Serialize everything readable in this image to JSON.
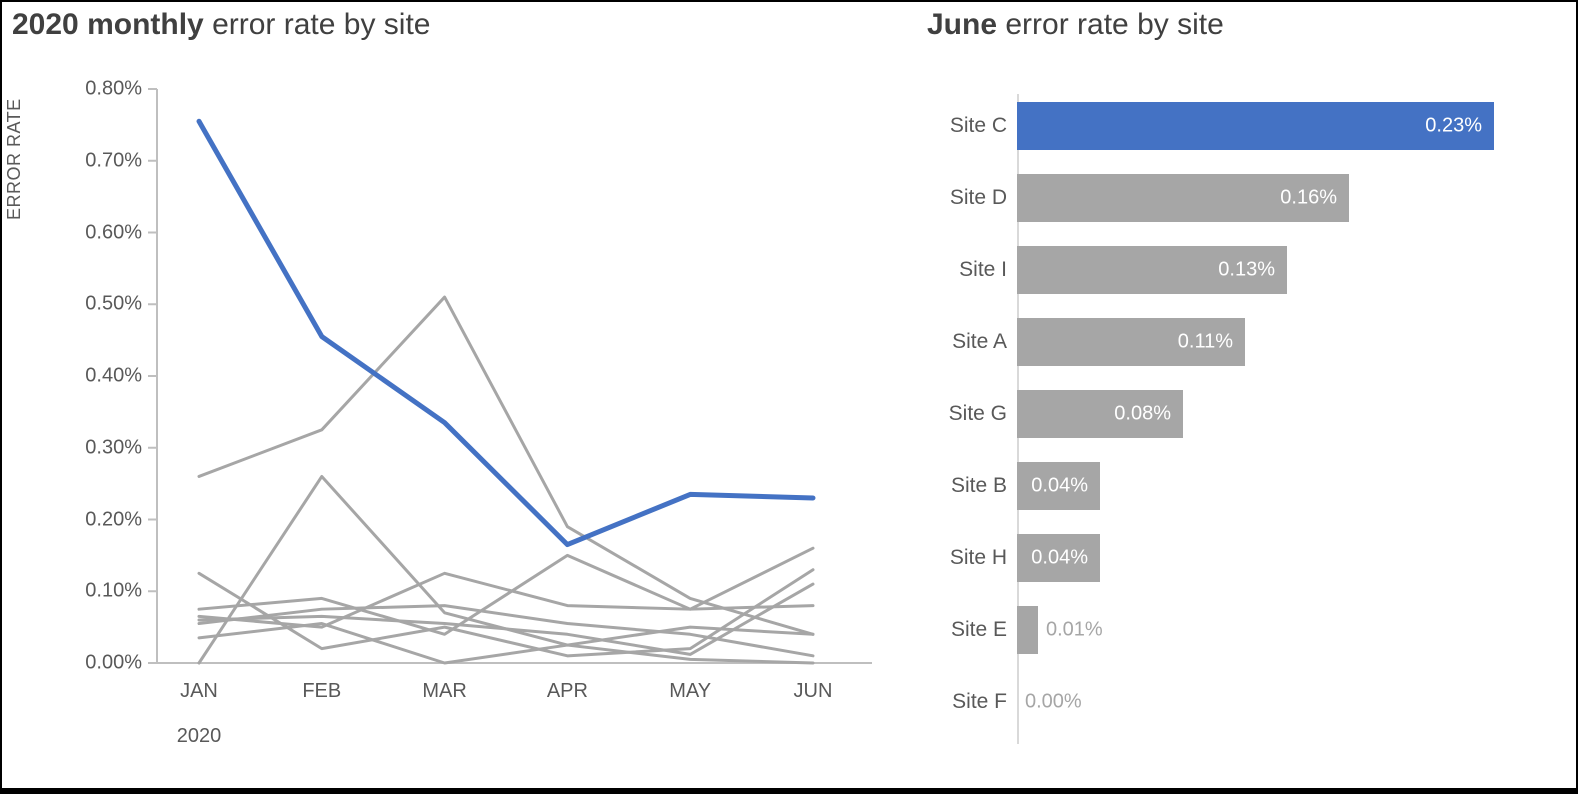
{
  "page": {
    "background": "#ffffff",
    "frame_color": "#000000"
  },
  "colors": {
    "accent_blue": "#4472c4",
    "series_gray": "#a6a6a6",
    "title_text": "#404040",
    "axis_text": "#595959",
    "axis_line": "#bfbfbf",
    "muted_value_text": "#a6a6a6"
  },
  "line_chart": {
    "title_bold": "2020 monthly",
    "title_rest": " error rate by site",
    "y_axis_label": "ERROR RATE",
    "x_axis_year": "2020"
  },
  "bar_chart": {
    "title_bold": "June",
    "title_rest": " error rate by site"
  },
  "chart_data": [
    {
      "type": "line",
      "title": "2020 monthly error rate by site",
      "xlabel": "2020",
      "ylabel": "ERROR RATE",
      "x": [
        "JAN",
        "FEB",
        "MAR",
        "APR",
        "MAY",
        "JUN"
      ],
      "ylim": [
        0,
        0.8
      ],
      "y_ticks": [
        "0.80%",
        "0.70%",
        "0.60%",
        "0.50%",
        "0.40%",
        "0.30%",
        "0.20%",
        "0.10%",
        "0.00%"
      ],
      "grid": false,
      "legend": "none",
      "unit": "percent",
      "series": [
        {
          "name": "Site D",
          "color": "#a6a6a6",
          "width": 3,
          "values": [
            0.075,
            0.09,
            0.04,
            0.15,
            0.075,
            0.16
          ]
        },
        {
          "name": "Site I",
          "color": "#a6a6a6",
          "width": 3,
          "values": [
            0.125,
            0.02,
            0.05,
            0.01,
            0.02,
            0.13
          ]
        },
        {
          "name": "Site A",
          "color": "#a6a6a6",
          "width": 3,
          "values": [
            0.06,
            0.065,
            0.055,
            0.04,
            0.012,
            0.11
          ]
        },
        {
          "name": "Site G",
          "color": "#a6a6a6",
          "width": 3,
          "values": [
            0.065,
            0.05,
            0.125,
            0.08,
            0.075,
            0.08
          ]
        },
        {
          "name": "Site B",
          "color": "#a6a6a6",
          "width": 3,
          "values": [
            0.0,
            0.26,
            0.07,
            0.025,
            0.05,
            0.04
          ]
        },
        {
          "name": "Site H",
          "color": "#a6a6a6",
          "width": 3,
          "values": [
            0.26,
            0.325,
            0.51,
            0.19,
            0.09,
            0.04
          ]
        },
        {
          "name": "Site E",
          "color": "#a6a6a6",
          "width": 3,
          "values": [
            0.055,
            0.075,
            0.08,
            0.055,
            0.04,
            0.01
          ]
        },
        {
          "name": "Site F",
          "color": "#a6a6a6",
          "width": 3,
          "values": [
            0.035,
            0.055,
            0.0,
            0.025,
            0.005,
            0.0
          ]
        },
        {
          "name": "Site C",
          "color": "#4472c4",
          "width": 5,
          "values": [
            0.755,
            0.455,
            0.335,
            0.165,
            0.235,
            0.23
          ]
        }
      ]
    },
    {
      "type": "bar",
      "orientation": "horizontal",
      "title": "June error rate by site",
      "categories": [
        "Site C",
        "Site D",
        "Site I",
        "Site A",
        "Site G",
        "Site B",
        "Site H",
        "Site E",
        "Site F"
      ],
      "values": [
        0.23,
        0.16,
        0.13,
        0.11,
        0.08,
        0.04,
        0.04,
        0.01,
        0.0
      ],
      "value_labels": [
        "0.23%",
        "0.16%",
        "0.13%",
        "0.11%",
        "0.08%",
        "0.04%",
        "0.04%",
        "0.01%",
        "0.00%"
      ],
      "label_inside": [
        true,
        true,
        true,
        true,
        true,
        true,
        true,
        false,
        false
      ],
      "highlight_category": "Site C",
      "xlim": [
        0,
        0.23
      ]
    }
  ]
}
